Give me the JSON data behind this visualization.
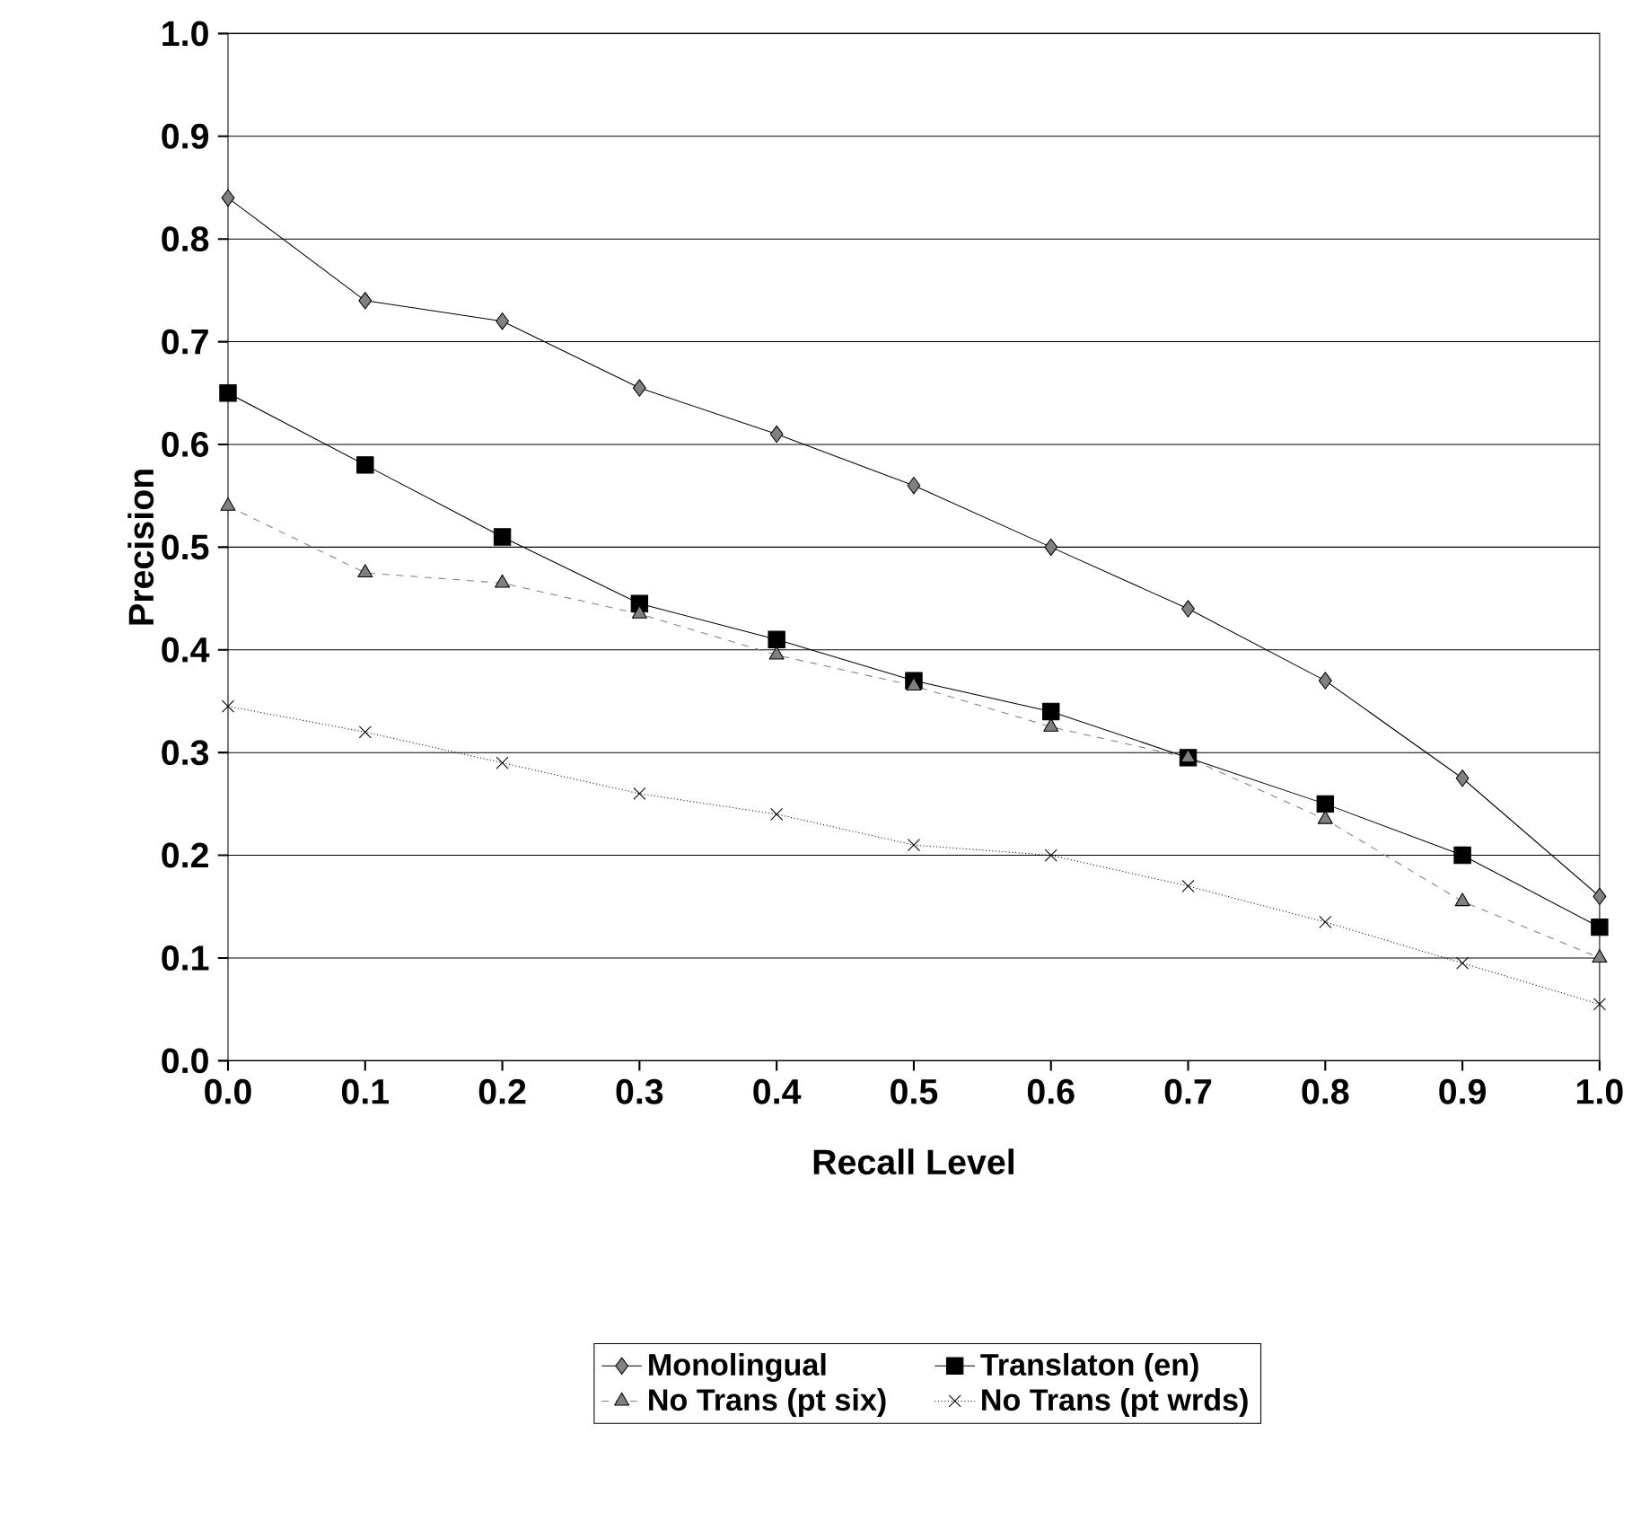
{
  "chart_data": {
    "type": "line",
    "xlabel": "Recall Level",
    "ylabel": "Precision",
    "x": [
      0,
      0.1,
      0.2,
      0.3,
      0.4,
      0.5,
      0.6,
      0.7,
      0.8,
      0.9,
      1.0
    ],
    "series": [
      {
        "name": "Monolingual",
        "color": "#000000",
        "marker": "diamond",
        "line_style": "solid",
        "values": [
          0.84,
          0.74,
          0.72,
          0.655,
          0.61,
          0.56,
          0.5,
          0.44,
          0.37,
          0.275,
          0.16
        ]
      },
      {
        "name": "Translaton (en)",
        "color": "#000000",
        "marker": "square",
        "line_style": "solid",
        "values": [
          0.65,
          0.58,
          0.51,
          0.445,
          0.41,
          0.37,
          0.34,
          0.295,
          0.25,
          0.2,
          0.13
        ]
      },
      {
        "name": "No Trans (pt six)",
        "color": "#808080",
        "marker": "triangle",
        "line_style": "dashed",
        "values": [
          0.54,
          0.475,
          0.465,
          0.435,
          0.395,
          0.365,
          0.325,
          0.295,
          0.235,
          0.155,
          0.1
        ]
      },
      {
        "name": "No Trans (pt wrds)",
        "color": "#000000",
        "marker": "cross",
        "line_style": "dotted",
        "values": [
          0.345,
          0.32,
          0.29,
          0.26,
          0.24,
          0.21,
          0.2,
          0.17,
          0.135,
          0.095,
          0.055
        ]
      }
    ],
    "xlim": [
      0,
      1.0
    ],
    "ylim": [
      0,
      1.0
    ],
    "xticks": [
      {
        "value": 0,
        "label": "0.0"
      },
      {
        "value": 0.1,
        "label": "0.1"
      },
      {
        "value": 0.2,
        "label": "0.2"
      },
      {
        "value": 0.3,
        "label": "0.3"
      },
      {
        "value": 0.4,
        "label": "0.4"
      },
      {
        "value": 0.5,
        "label": "0.5"
      },
      {
        "value": 0.6,
        "label": "0.6"
      },
      {
        "value": 0.7,
        "label": "0.7"
      },
      {
        "value": 0.8,
        "label": "0.8"
      },
      {
        "value": 0.9,
        "label": "0.9"
      },
      {
        "value": 1.0,
        "label": "1.0"
      }
    ],
    "yticks": [
      {
        "value": 0,
        "label": "0.0"
      },
      {
        "value": 0.1,
        "label": "0.1"
      },
      {
        "value": 0.2,
        "label": "0.2"
      },
      {
        "value": 0.3,
        "label": "0.3"
      },
      {
        "value": 0.4,
        "label": "0.4"
      },
      {
        "value": 0.5,
        "label": "0.5"
      },
      {
        "value": 0.6,
        "label": "0.6"
      },
      {
        "value": 0.7,
        "label": "0.7"
      },
      {
        "value": 0.8,
        "label": "0.8"
      },
      {
        "value": 0.9,
        "label": "0.9"
      },
      {
        "value": 1.0,
        "label": "1.0"
      }
    ],
    "grid": "y",
    "legend": "bottom"
  }
}
